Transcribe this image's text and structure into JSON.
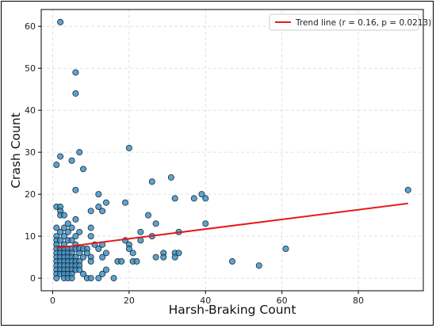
{
  "chart_data": {
    "type": "scatter",
    "xlabel": "Harsh-Braking Count",
    "ylabel": "Crash Count",
    "xlim": [
      -3,
      97
    ],
    "ylim": [
      -3,
      64
    ],
    "xticks": [
      0,
      20,
      40,
      60,
      80
    ],
    "yticks": [
      0,
      10,
      20,
      30,
      40,
      50,
      60
    ],
    "grid": true,
    "legend_position": "top-right",
    "colors": {
      "point_fill": "#3a8fc4",
      "point_edge": "#1b2a38",
      "trend": "#e41a1c",
      "grid": "#d9d9d9"
    },
    "trend_line": {
      "label": "Trend line (r = 0.16, p = 0.0213)",
      "x": [
        1,
        93
      ],
      "y": [
        7.2,
        17.8
      ]
    },
    "points": [
      [
        2,
        61
      ],
      [
        6,
        49
      ],
      [
        6,
        44
      ],
      [
        7,
        30
      ],
      [
        2,
        29
      ],
      [
        5,
        28
      ],
      [
        1,
        27
      ],
      [
        8,
        26
      ],
      [
        20,
        31
      ],
      [
        31,
        24
      ],
      [
        26,
        23
      ],
      [
        6,
        21
      ],
      [
        12,
        20
      ],
      [
        39,
        20
      ],
      [
        32,
        19
      ],
      [
        37,
        19
      ],
      [
        40,
        19
      ],
      [
        14,
        18
      ],
      [
        19,
        18
      ],
      [
        1,
        17
      ],
      [
        2,
        17
      ],
      [
        12,
        17
      ],
      [
        10,
        16
      ],
      [
        13,
        16
      ],
      [
        2,
        16
      ],
      [
        2,
        15
      ],
      [
        3,
        15
      ],
      [
        25,
        15
      ],
      [
        6,
        14
      ],
      [
        4,
        13
      ],
      [
        27,
        13
      ],
      [
        40,
        13
      ],
      [
        1,
        12
      ],
      [
        3,
        12
      ],
      [
        5,
        12
      ],
      [
        10,
        12
      ],
      [
        2,
        11
      ],
      [
        4,
        11
      ],
      [
        7,
        11
      ],
      [
        23,
        11
      ],
      [
        33,
        11
      ],
      [
        1,
        10
      ],
      [
        3,
        10
      ],
      [
        6,
        10
      ],
      [
        10,
        10
      ],
      [
        26,
        10
      ],
      [
        1,
        9
      ],
      [
        2,
        9
      ],
      [
        4,
        9
      ],
      [
        5,
        9
      ],
      [
        19,
        9
      ],
      [
        23,
        9
      ],
      [
        1,
        8
      ],
      [
        3,
        8
      ],
      [
        6,
        8
      ],
      [
        11,
        8
      ],
      [
        20,
        8
      ],
      [
        13,
        8
      ],
      [
        1,
        7
      ],
      [
        2,
        7
      ],
      [
        3,
        7
      ],
      [
        4,
        7
      ],
      [
        5,
        7
      ],
      [
        6,
        7
      ],
      [
        7,
        7
      ],
      [
        8,
        7
      ],
      [
        9,
        7
      ],
      [
        12,
        7
      ],
      [
        20,
        7
      ],
      [
        61,
        7
      ],
      [
        1,
        6
      ],
      [
        2,
        6
      ],
      [
        3,
        6
      ],
      [
        4,
        6
      ],
      [
        5,
        6
      ],
      [
        7,
        6
      ],
      [
        9,
        6
      ],
      [
        14,
        6
      ],
      [
        21,
        6
      ],
      [
        29,
        6
      ],
      [
        32,
        6
      ],
      [
        33,
        6
      ],
      [
        1,
        5
      ],
      [
        2,
        5
      ],
      [
        3,
        5
      ],
      [
        4,
        5
      ],
      [
        5,
        5
      ],
      [
        6,
        5
      ],
      [
        8,
        5
      ],
      [
        10,
        5
      ],
      [
        13,
        5
      ],
      [
        27,
        5
      ],
      [
        29,
        5
      ],
      [
        32,
        5
      ],
      [
        1,
        4
      ],
      [
        2,
        4
      ],
      [
        3,
        4
      ],
      [
        4,
        4
      ],
      [
        5,
        4
      ],
      [
        6,
        4
      ],
      [
        7,
        4
      ],
      [
        10,
        4
      ],
      [
        17,
        4
      ],
      [
        18,
        4
      ],
      [
        21,
        4
      ],
      [
        22,
        4
      ],
      [
        47,
        4
      ],
      [
        1,
        3
      ],
      [
        2,
        3
      ],
      [
        3,
        3
      ],
      [
        4,
        3
      ],
      [
        5,
        3
      ],
      [
        6,
        3
      ],
      [
        7,
        3
      ],
      [
        54,
        3
      ],
      [
        1,
        2
      ],
      [
        2,
        2
      ],
      [
        3,
        2
      ],
      [
        4,
        2
      ],
      [
        5,
        2
      ],
      [
        6,
        2
      ],
      [
        7,
        2
      ],
      [
        14,
        2
      ],
      [
        1,
        1
      ],
      [
        2,
        1
      ],
      [
        3,
        1
      ],
      [
        4,
        1
      ],
      [
        5,
        1
      ],
      [
        8,
        1
      ],
      [
        13,
        1
      ],
      [
        1,
        0
      ],
      [
        3,
        0
      ],
      [
        4,
        0
      ],
      [
        5,
        0
      ],
      [
        9,
        0
      ],
      [
        10,
        0
      ],
      [
        12,
        0
      ],
      [
        16,
        0
      ],
      [
        93,
        21
      ]
    ]
  }
}
